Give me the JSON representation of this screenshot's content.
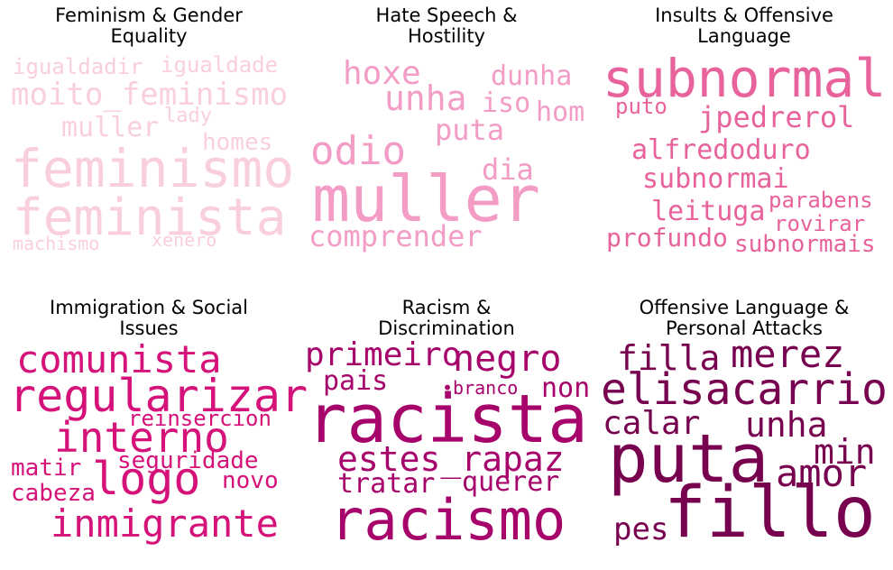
{
  "panels": [
    {
      "title_line1": "Feminism & Gender",
      "title_line2": "Equality",
      "color": "#f9cfe0",
      "words": [
        {
          "text": "igualdadir"
        },
        {
          "text": "igualdade"
        },
        {
          "text": "moito_feminismo"
        },
        {
          "text": "lady"
        },
        {
          "text": "muller"
        },
        {
          "text": "homes"
        },
        {
          "text": "feminismo"
        },
        {
          "text": "feminista"
        },
        {
          "text": "machismo"
        },
        {
          "text": "xenero"
        }
      ]
    },
    {
      "title_line1": "Hate Speech &",
      "title_line2": "Hostility",
      "color": "#f29cc6",
      "words": [
        {
          "text": "hoxe"
        },
        {
          "text": "dunha"
        },
        {
          "text": "unha"
        },
        {
          "text": "iso"
        },
        {
          "text": "hom"
        },
        {
          "text": "puta"
        },
        {
          "text": "odio"
        },
        {
          "text": "dia"
        },
        {
          "text": "muller"
        },
        {
          "text": "comprender"
        }
      ]
    },
    {
      "title_line1": "Insults & Offensive",
      "title_line2": "Language",
      "color": "#e8629c",
      "words": [
        {
          "text": "subnormal"
        },
        {
          "text": "puto"
        },
        {
          "text": "jpedrerol"
        },
        {
          "text": "alfredoduro"
        },
        {
          "text": "subnormai"
        },
        {
          "text": "parabens"
        },
        {
          "text": "leituga"
        },
        {
          "text": "rovirar"
        },
        {
          "text": "profundo"
        },
        {
          "text": "subnormais"
        }
      ]
    },
    {
      "title_line1": "Immigration & Social",
      "title_line2": "Issues",
      "color": "#d5127a",
      "words": [
        {
          "text": "comunista"
        },
        {
          "text": "regularizar"
        },
        {
          "text": "reinsercion"
        },
        {
          "text": "interno"
        },
        {
          "text": "seguridade"
        },
        {
          "text": "matir"
        },
        {
          "text": "logo"
        },
        {
          "text": "novo"
        },
        {
          "text": "cabeza"
        },
        {
          "text": "inmigrante"
        }
      ]
    },
    {
      "title_line1": "Racism &",
      "title_line2": "Discrimination",
      "color": "#a6036b",
      "words": [
        {
          "text": "primeiro"
        },
        {
          "text": "negro"
        },
        {
          "text": "pais"
        },
        {
          "text": "•branco"
        },
        {
          "text": "non"
        },
        {
          "text": "racista"
        },
        {
          "text": "estes_rapaz"
        },
        {
          "text": "tratar"
        },
        {
          "text": "querer"
        },
        {
          "text": "racismo"
        }
      ]
    },
    {
      "title_line1": "Offensive Language &",
      "title_line2": "Personal Attacks",
      "color": "#77014f",
      "words": [
        {
          "text": "filla"
        },
        {
          "text": "merez"
        },
        {
          "text": "elisacarrio"
        },
        {
          "text": "calar"
        },
        {
          "text": "unha"
        },
        {
          "text": "min"
        },
        {
          "text": "puta"
        },
        {
          "text": "amor"
        },
        {
          "text": "pes"
        },
        {
          "text": "fillo"
        }
      ]
    }
  ]
}
